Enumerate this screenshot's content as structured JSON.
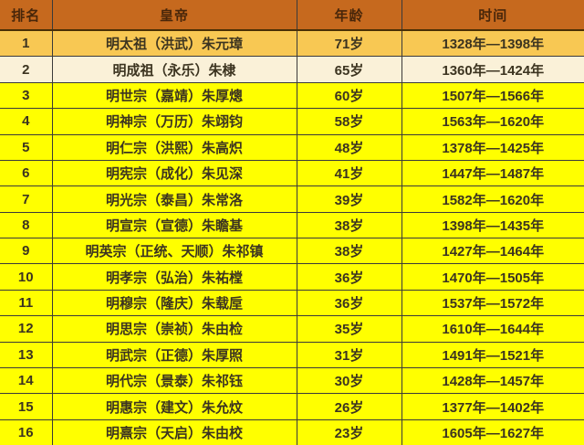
{
  "colors": {
    "header_bg": "#c6691e",
    "header_text": "#48260a",
    "row_gold_bg": "#f8c853",
    "row_cream_bg": "#faf1d8",
    "row_yellow_bg": "#ffff00",
    "cell_text": "#3c3420",
    "border": "#3a3a3a"
  },
  "table": {
    "headers": [
      "排名",
      "皇帝",
      "年龄",
      "时间"
    ],
    "rows": [
      {
        "rank": "1",
        "emperor": "明太祖（洪武）朱元璋",
        "age": "71岁",
        "period": "1328年—1398年"
      },
      {
        "rank": "2",
        "emperor": "明成祖（永乐）朱棣",
        "age": "65岁",
        "period": "1360年—1424年"
      },
      {
        "rank": "3",
        "emperor": "明世宗（嘉靖）朱厚熜",
        "age": "60岁",
        "period": "1507年—1566年"
      },
      {
        "rank": "4",
        "emperor": "明神宗（万历）朱翊钧",
        "age": "58岁",
        "period": "1563年—1620年"
      },
      {
        "rank": "5",
        "emperor": "明仁宗（洪熙）朱高炽",
        "age": "48岁",
        "period": "1378年—1425年"
      },
      {
        "rank": "6",
        "emperor": "明宪宗（成化）朱见深",
        "age": "41岁",
        "period": "1447年—1487年"
      },
      {
        "rank": "7",
        "emperor": "明光宗（泰昌）朱常洛",
        "age": "39岁",
        "period": "1582年—1620年"
      },
      {
        "rank": "8",
        "emperor": "明宣宗（宣德）朱瞻基",
        "age": "38岁",
        "period": "1398年—1435年"
      },
      {
        "rank": "9",
        "emperor": "明英宗（正统、天顺）朱祁镇",
        "age": "38岁",
        "period": "1427年—1464年"
      },
      {
        "rank": "10",
        "emperor": "明孝宗（弘治）朱祐樘",
        "age": "36岁",
        "period": "1470年—1505年"
      },
      {
        "rank": "11",
        "emperor": "明穆宗（隆庆）朱载垕",
        "age": "36岁",
        "period": "1537年—1572年"
      },
      {
        "rank": "12",
        "emperor": "明思宗（崇祯）朱由检",
        "age": "35岁",
        "period": "1610年—1644年"
      },
      {
        "rank": "13",
        "emperor": "明武宗（正德）朱厚照",
        "age": "31岁",
        "period": "1491年—1521年"
      },
      {
        "rank": "14",
        "emperor": "明代宗（景泰）朱祁钰",
        "age": "30岁",
        "period": "1428年—1457年"
      },
      {
        "rank": "15",
        "emperor": "明惠宗（建文）朱允炆",
        "age": "26岁",
        "period": "1377年—1402年"
      },
      {
        "rank": "16",
        "emperor": "明熹宗（天启）朱由校",
        "age": "23岁",
        "period": "1605年—1627年"
      }
    ]
  },
  "chart_data": {
    "type": "table",
    "title": "",
    "columns": [
      "排名",
      "皇帝",
      "年龄",
      "时间"
    ],
    "rows": [
      [
        "1",
        "明太祖（洪武）朱元璋",
        "71岁",
        "1328年—1398年"
      ],
      [
        "2",
        "明成祖（永乐）朱棣",
        "65岁",
        "1360年—1424年"
      ],
      [
        "3",
        "明世宗（嘉靖）朱厚熜",
        "60岁",
        "1507年—1566年"
      ],
      [
        "4",
        "明神宗（万历）朱翊钧",
        "58岁",
        "1563年—1620年"
      ],
      [
        "5",
        "明仁宗（洪熙）朱高炽",
        "48岁",
        "1378年—1425年"
      ],
      [
        "6",
        "明宪宗（成化）朱见深",
        "41岁",
        "1447年—1487年"
      ],
      [
        "7",
        "明光宗（泰昌）朱常洛",
        "39岁",
        "1582年—1620年"
      ],
      [
        "8",
        "明宣宗（宣德）朱瞻基",
        "38岁",
        "1398年—1435年"
      ],
      [
        "9",
        "明英宗（正统、天顺）朱祁镇",
        "38岁",
        "1427年—1464年"
      ],
      [
        "10",
        "明孝宗（弘治）朱祐樘",
        "36岁",
        "1470年—1505年"
      ],
      [
        "11",
        "明穆宗（隆庆）朱载垕",
        "36岁",
        "1537年—1572年"
      ],
      [
        "12",
        "明思宗（崇祯）朱由检",
        "35岁",
        "1610年—1644年"
      ],
      [
        "13",
        "明武宗（正德）朱厚照",
        "31岁",
        "1491年—1521年"
      ],
      [
        "14",
        "明代宗（景泰）朱祁钰",
        "30岁",
        "1428年—1457年"
      ],
      [
        "15",
        "明惠宗（建文）朱允炆",
        "26岁",
        "1377年—1402年"
      ],
      [
        "16",
        "明熹宗（天启）朱由校",
        "23岁",
        "1605年—1627年"
      ]
    ],
    "ages_numeric": [
      71,
      65,
      60,
      58,
      48,
      41,
      39,
      38,
      38,
      36,
      36,
      35,
      31,
      30,
      26,
      23
    ]
  }
}
